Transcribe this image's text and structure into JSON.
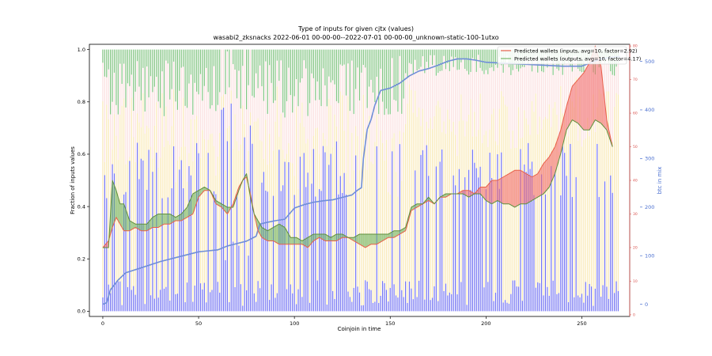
{
  "chart_data": {
    "type": "bar",
    "title": "Type of inputs for given cjtx (values)",
    "subtitle": "wasabi2_zksnacks 2022-06-01 00-00-00--2022-07-01 00-00-00_unknown-static-100-1utxo",
    "xlabel": "Coinjoin in time",
    "ylabel": "Fraction of inputs values",
    "y2label": "btc in mix",
    "xlim": [
      -7,
      275
    ],
    "ylim": [
      -0.02,
      1.02
    ],
    "y2lim": [
      -25,
      535
    ],
    "y3lim": [
      -0.5,
      80.5
    ],
    "x_ticks": [
      "0",
      "50",
      "100",
      "150",
      "200",
      "250"
    ],
    "y_ticks": [
      "0.0",
      "0.2",
      "0.4",
      "0.6",
      "0.8",
      "1.0"
    ],
    "y2_ticks": [
      "0",
      "100",
      "200",
      "300",
      "400",
      "500"
    ],
    "y3_ticks": [
      "0",
      "10",
      "20",
      "30",
      "40",
      "50",
      "60",
      "70",
      "80"
    ],
    "legend": [
      {
        "label": "Predicted wallets (inputs, avg=10, factor=2.92)",
        "color": "#e8604a"
      },
      {
        "label": "Predicted wallets (outputs, avg=10, factor=4.17)",
        "color": "#7ab86a"
      }
    ],
    "stack_colors": {
      "fresh": "#5b5bf0",
      "remix": "#f4d77a",
      "mixed": "#f7c6c6",
      "other": "#62b562"
    },
    "btc_line_color": "#6f8ed8",
    "n_coinjoins": 270,
    "btc_in_mix_keypoints": [
      [
        0,
        0
      ],
      [
        2,
        3
      ],
      [
        4,
        30
      ],
      [
        8,
        50
      ],
      [
        12,
        65
      ],
      [
        20,
        75
      ],
      [
        30,
        88
      ],
      [
        40,
        98
      ],
      [
        50,
        108
      ],
      [
        60,
        112
      ],
      [
        65,
        120
      ],
      [
        70,
        125
      ],
      [
        75,
        130
      ],
      [
        80,
        140
      ],
      [
        82,
        165
      ],
      [
        85,
        168
      ],
      [
        90,
        172
      ],
      [
        95,
        175
      ],
      [
        100,
        198
      ],
      [
        105,
        205
      ],
      [
        110,
        210
      ],
      [
        115,
        213
      ],
      [
        120,
        215
      ],
      [
        125,
        220
      ],
      [
        130,
        225
      ],
      [
        133,
        235
      ],
      [
        135,
        240
      ],
      [
        136,
        300
      ],
      [
        137,
        330
      ],
      [
        138,
        360
      ],
      [
        140,
        380
      ],
      [
        142,
        410
      ],
      [
        143,
        420
      ],
      [
        145,
        440
      ],
      [
        150,
        445
      ],
      [
        155,
        455
      ],
      [
        160,
        470
      ],
      [
        165,
        480
      ],
      [
        170,
        485
      ],
      [
        175,
        492
      ],
      [
        180,
        500
      ],
      [
        185,
        505
      ],
      [
        190,
        505
      ],
      [
        195,
        502
      ],
      [
        200,
        498
      ],
      [
        210,
        496
      ],
      [
        220,
        494
      ],
      [
        230,
        492
      ],
      [
        240,
        490
      ],
      [
        250,
        490
      ],
      [
        260,
        505
      ],
      [
        265,
        508
      ],
      [
        270,
        510
      ]
    ],
    "predicted_wallets_inputs": [
      [
        0,
        20
      ],
      [
        3,
        22
      ],
      [
        5,
        26
      ],
      [
        7,
        29
      ],
      [
        9,
        27
      ],
      [
        11,
        25
      ],
      [
        14,
        25
      ],
      [
        17,
        26
      ],
      [
        20,
        25
      ],
      [
        23,
        25
      ],
      [
        26,
        26
      ],
      [
        29,
        26
      ],
      [
        32,
        27
      ],
      [
        35,
        27
      ],
      [
        38,
        28
      ],
      [
        41,
        28
      ],
      [
        44,
        29
      ],
      [
        47,
        30
      ],
      [
        50,
        35
      ],
      [
        53,
        37
      ],
      [
        56,
        37
      ],
      [
        59,
        33
      ],
      [
        62,
        32
      ],
      [
        65,
        30
      ],
      [
        68,
        33
      ],
      [
        71,
        38
      ],
      [
        73,
        40
      ],
      [
        75,
        41
      ],
      [
        77,
        36
      ],
      [
        79,
        30
      ],
      [
        81,
        25
      ],
      [
        83,
        23
      ],
      [
        86,
        22
      ],
      [
        89,
        22
      ],
      [
        92,
        21
      ],
      [
        95,
        21
      ],
      [
        98,
        21
      ],
      [
        101,
        21
      ],
      [
        104,
        21
      ],
      [
        107,
        20
      ],
      [
        110,
        22
      ],
      [
        113,
        23
      ],
      [
        116,
        22
      ],
      [
        119,
        22
      ],
      [
        122,
        22
      ],
      [
        125,
        23
      ],
      [
        128,
        23
      ],
      [
        131,
        22
      ],
      [
        134,
        21
      ],
      [
        137,
        20
      ],
      [
        140,
        21
      ],
      [
        143,
        21
      ],
      [
        146,
        22
      ],
      [
        149,
        23
      ],
      [
        152,
        23
      ],
      [
        155,
        24
      ],
      [
        158,
        25
      ],
      [
        161,
        31
      ],
      [
        164,
        32
      ],
      [
        167,
        33
      ],
      [
        170,
        34
      ],
      [
        173,
        33
      ],
      [
        176,
        35
      ],
      [
        179,
        35
      ],
      [
        182,
        36
      ],
      [
        185,
        36
      ],
      [
        188,
        37
      ],
      [
        191,
        37
      ],
      [
        194,
        36
      ],
      [
        197,
        38
      ],
      [
        200,
        38
      ],
      [
        203,
        40
      ],
      [
        206,
        40
      ],
      [
        209,
        41
      ],
      [
        212,
        42
      ],
      [
        215,
        43
      ],
      [
        218,
        43
      ],
      [
        221,
        42
      ],
      [
        224,
        41
      ],
      [
        227,
        42
      ],
      [
        230,
        45
      ],
      [
        233,
        47
      ],
      [
        236,
        50
      ],
      [
        239,
        55
      ],
      [
        242,
        62
      ],
      [
        245,
        68
      ],
      [
        248,
        70
      ],
      [
        251,
        72
      ],
      [
        254,
        75
      ],
      [
        257,
        80
      ],
      [
        260,
        74
      ],
      [
        263,
        58
      ],
      [
        266,
        50
      ]
    ],
    "predicted_wallets_outputs": [
      [
        0,
        20
      ],
      [
        3,
        20
      ],
      [
        5,
        40
      ],
      [
        7,
        37
      ],
      [
        9,
        33
      ],
      [
        11,
        33
      ],
      [
        14,
        28
      ],
      [
        17,
        27
      ],
      [
        20,
        27
      ],
      [
        23,
        27
      ],
      [
        26,
        29
      ],
      [
        29,
        30
      ],
      [
        32,
        30
      ],
      [
        35,
        30
      ],
      [
        38,
        29
      ],
      [
        41,
        30
      ],
      [
        44,
        32
      ],
      [
        47,
        36
      ],
      [
        50,
        37
      ],
      [
        53,
        38
      ],
      [
        56,
        37
      ],
      [
        59,
        34
      ],
      [
        62,
        33
      ],
      [
        65,
        32
      ],
      [
        68,
        32
      ],
      [
        71,
        37
      ],
      [
        73,
        40
      ],
      [
        75,
        42
      ],
      [
        77,
        35
      ],
      [
        79,
        30
      ],
      [
        81,
        28
      ],
      [
        83,
        26
      ],
      [
        86,
        25
      ],
      [
        89,
        26
      ],
      [
        92,
        27
      ],
      [
        95,
        26
      ],
      [
        98,
        23
      ],
      [
        101,
        23
      ],
      [
        104,
        22
      ],
      [
        107,
        23
      ],
      [
        110,
        24
      ],
      [
        113,
        24
      ],
      [
        116,
        24
      ],
      [
        119,
        23
      ],
      [
        122,
        24
      ],
      [
        125,
        24
      ],
      [
        128,
        23
      ],
      [
        131,
        23
      ],
      [
        134,
        24
      ],
      [
        137,
        24
      ],
      [
        140,
        24
      ],
      [
        143,
        24
      ],
      [
        146,
        24
      ],
      [
        149,
        24
      ],
      [
        152,
        25
      ],
      [
        155,
        25
      ],
      [
        158,
        26
      ],
      [
        161,
        32
      ],
      [
        164,
        33
      ],
      [
        167,
        33
      ],
      [
        170,
        35
      ],
      [
        173,
        33
      ],
      [
        176,
        35
      ],
      [
        179,
        36
      ],
      [
        182,
        36
      ],
      [
        185,
        36
      ],
      [
        188,
        36
      ],
      [
        191,
        35
      ],
      [
        194,
        36
      ],
      [
        197,
        36
      ],
      [
        200,
        34
      ],
      [
        203,
        33
      ],
      [
        206,
        34
      ],
      [
        209,
        33
      ],
      [
        212,
        33
      ],
      [
        215,
        32
      ],
      [
        218,
        33
      ],
      [
        221,
        33
      ],
      [
        224,
        34
      ],
      [
        227,
        35
      ],
      [
        230,
        36
      ],
      [
        233,
        38
      ],
      [
        236,
        42
      ],
      [
        239,
        48
      ],
      [
        242,
        55
      ],
      [
        245,
        58
      ],
      [
        248,
        57
      ],
      [
        251,
        55
      ],
      [
        254,
        55
      ],
      [
        257,
        58
      ],
      [
        260,
        57
      ],
      [
        263,
        55
      ],
      [
        266,
        50
      ]
    ]
  }
}
